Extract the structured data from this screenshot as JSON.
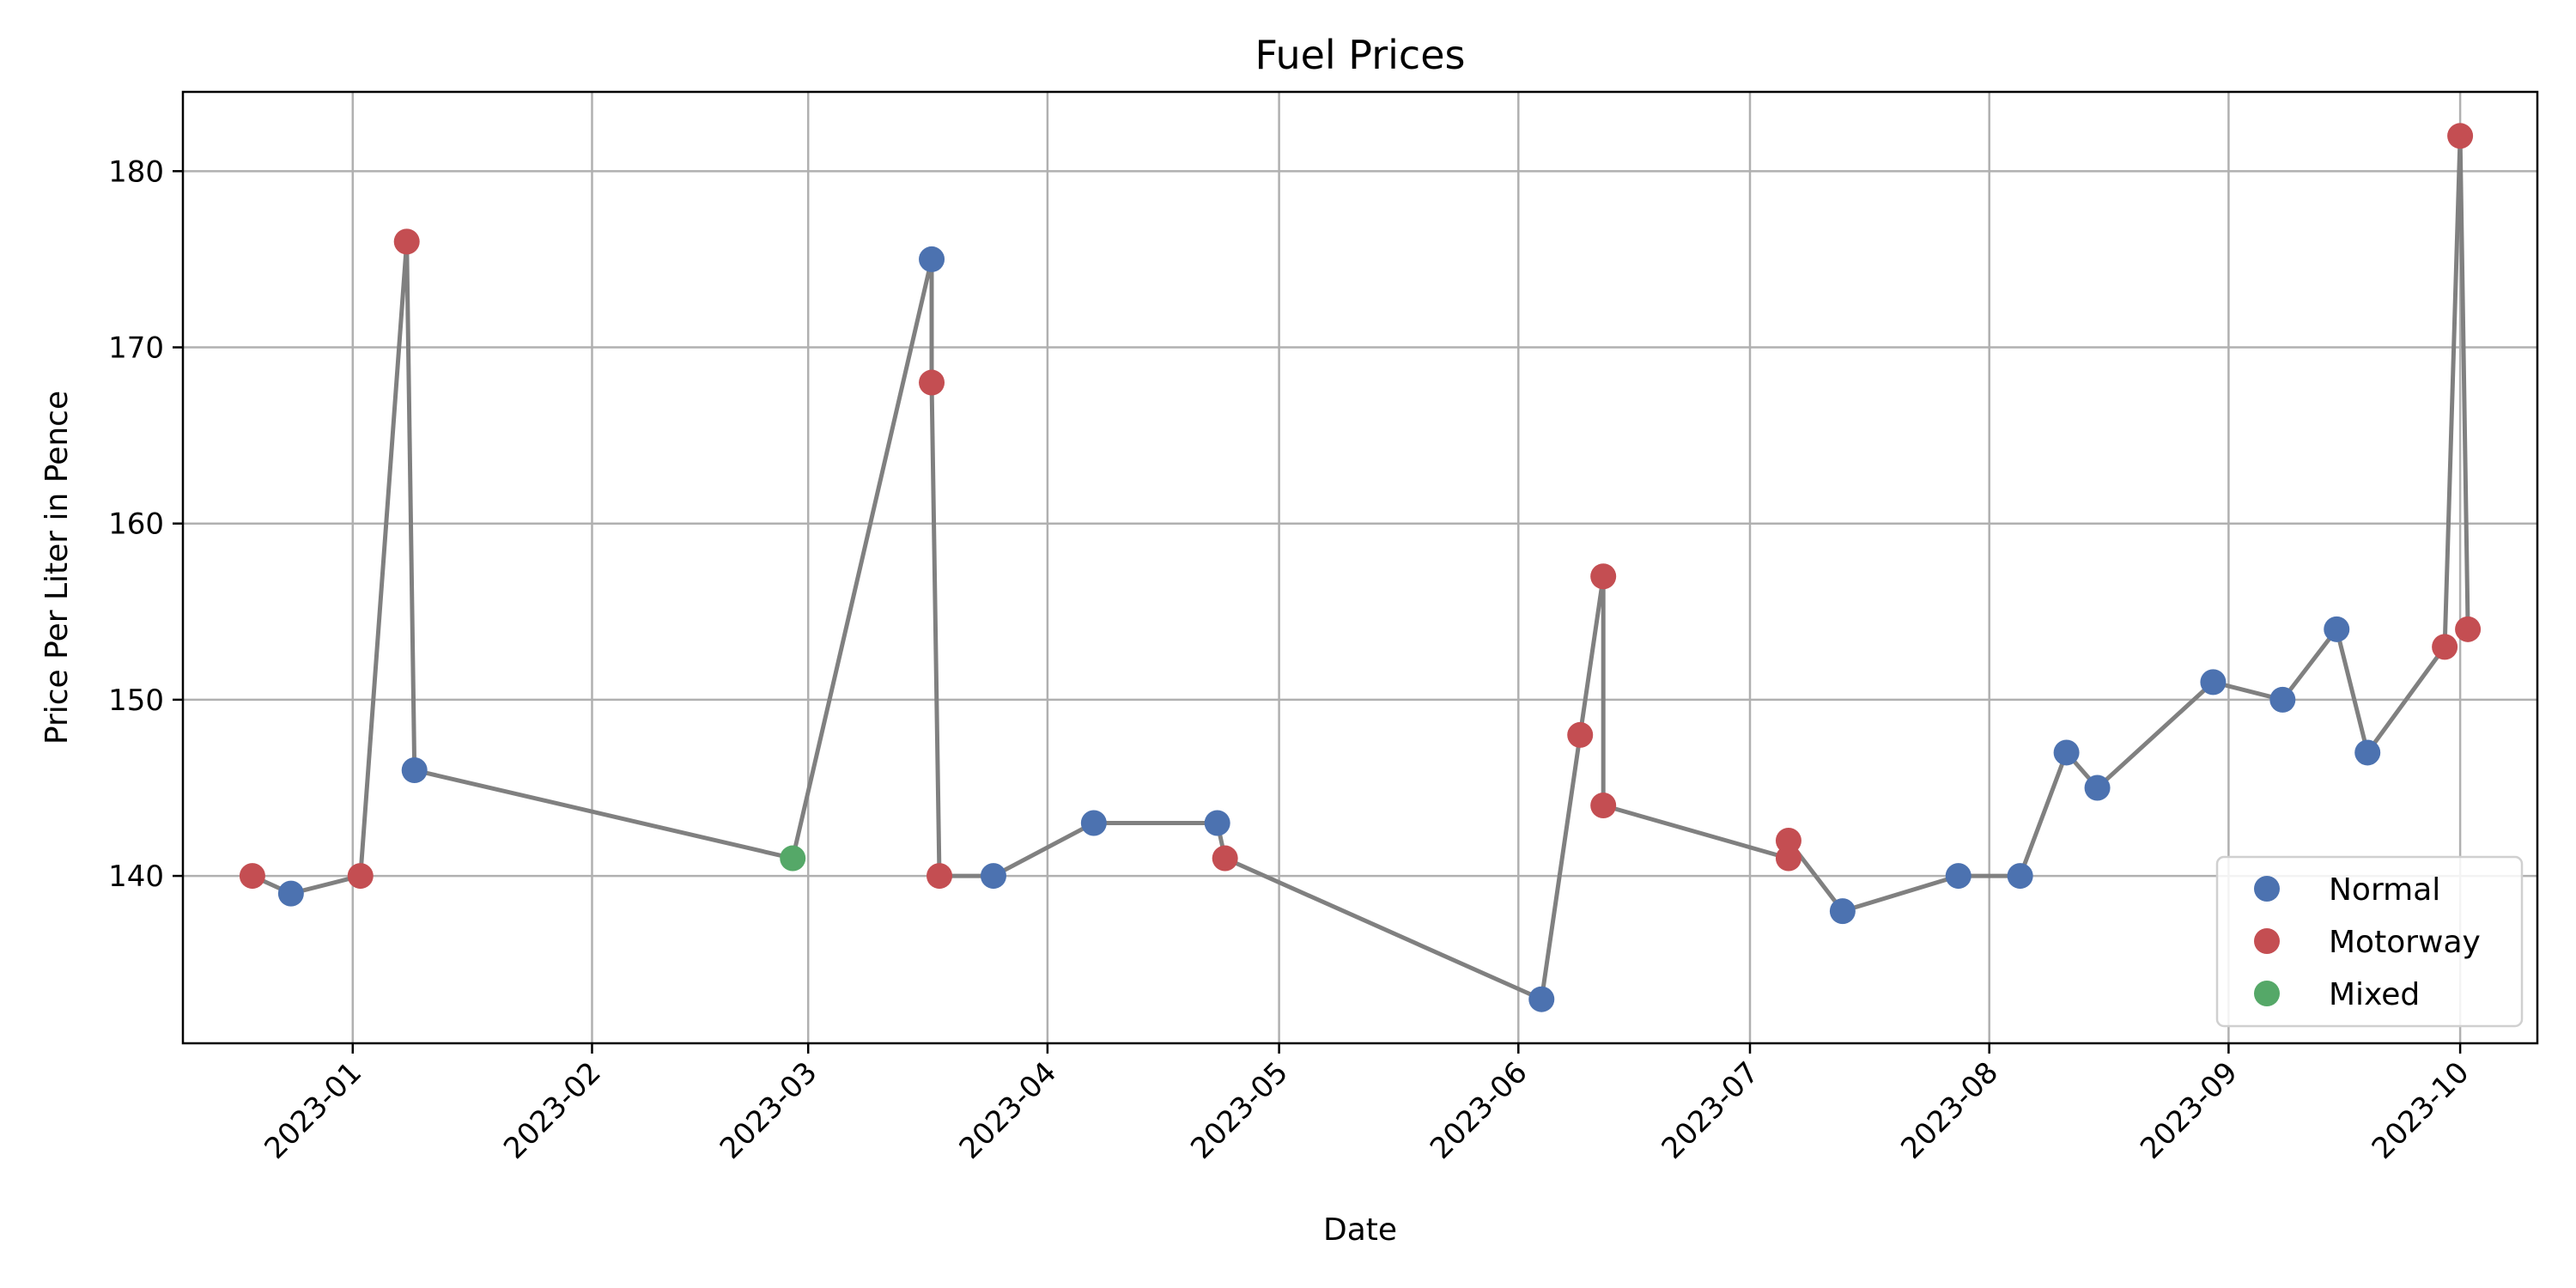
{
  "chart_data": {
    "type": "scatter",
    "title": "Fuel Prices",
    "xlabel": "Date",
    "ylabel": "Price Per Liter in Pence",
    "xlim": [
      "2022-12-10",
      "2023-10-11"
    ],
    "ylim": [
      130.5,
      184.5
    ],
    "x_ticks": [
      "2023-01",
      "2023-02",
      "2023-03",
      "2023-04",
      "2023-05",
      "2023-06",
      "2023-07",
      "2023-08",
      "2023-09",
      "2023-10"
    ],
    "x_tick_dates": [
      "2023-01-01",
      "2023-02-01",
      "2023-03-01",
      "2023-04-01",
      "2023-05-01",
      "2023-06-01",
      "2023-07-01",
      "2023-08-01",
      "2023-09-01",
      "2023-10-01"
    ],
    "y_ticks": [
      140,
      150,
      160,
      170,
      180
    ],
    "grid": true,
    "legend_position": "lower-right",
    "connecting_line": true,
    "colors": {
      "Normal": "#4c72b0",
      "Motorway": "#c44e52",
      "Mixed": "#55a868",
      "line": "#808080",
      "grid": "#b0b0b0"
    },
    "series": [
      {
        "name": "Normal"
      },
      {
        "name": "Motorway"
      },
      {
        "name": "Mixed"
      }
    ],
    "points": [
      {
        "date": "2022-12-19",
        "value": 140,
        "category": "Motorway"
      },
      {
        "date": "2022-12-24",
        "value": 139,
        "category": "Normal"
      },
      {
        "date": "2023-01-02",
        "value": 140,
        "category": "Motorway"
      },
      {
        "date": "2023-01-08",
        "value": 176,
        "category": "Motorway"
      },
      {
        "date": "2023-01-09",
        "value": 146,
        "category": "Normal"
      },
      {
        "date": "2023-02-27",
        "value": 141,
        "category": "Mixed"
      },
      {
        "date": "2023-03-17",
        "value": 175,
        "category": "Normal"
      },
      {
        "date": "2023-03-17",
        "value": 168,
        "category": "Motorway"
      },
      {
        "date": "2023-03-18",
        "value": 140,
        "category": "Motorway"
      },
      {
        "date": "2023-03-25",
        "value": 140,
        "category": "Normal"
      },
      {
        "date": "2023-04-07",
        "value": 143,
        "category": "Normal"
      },
      {
        "date": "2023-04-23",
        "value": 143,
        "category": "Normal"
      },
      {
        "date": "2023-04-24",
        "value": 141,
        "category": "Motorway"
      },
      {
        "date": "2023-06-04",
        "value": 133,
        "category": "Normal"
      },
      {
        "date": "2023-06-09",
        "value": 148,
        "category": "Motorway"
      },
      {
        "date": "2023-06-12",
        "value": 157,
        "category": "Motorway"
      },
      {
        "date": "2023-06-12",
        "value": 144,
        "category": "Motorway"
      },
      {
        "date": "2023-07-06",
        "value": 141,
        "category": "Motorway"
      },
      {
        "date": "2023-07-06",
        "value": 142,
        "category": "Motorway"
      },
      {
        "date": "2023-07-13",
        "value": 138,
        "category": "Normal"
      },
      {
        "date": "2023-07-28",
        "value": 140,
        "category": "Normal"
      },
      {
        "date": "2023-08-05",
        "value": 140,
        "category": "Normal"
      },
      {
        "date": "2023-08-11",
        "value": 147,
        "category": "Normal"
      },
      {
        "date": "2023-08-15",
        "value": 145,
        "category": "Normal"
      },
      {
        "date": "2023-08-30",
        "value": 151,
        "category": "Normal"
      },
      {
        "date": "2023-09-08",
        "value": 150,
        "category": "Normal"
      },
      {
        "date": "2023-09-15",
        "value": 154,
        "category": "Normal"
      },
      {
        "date": "2023-09-19",
        "value": 147,
        "category": "Normal"
      },
      {
        "date": "2023-09-29",
        "value": 153,
        "category": "Motorway"
      },
      {
        "date": "2023-10-01",
        "value": 182,
        "category": "Motorway"
      },
      {
        "date": "2023-10-02",
        "value": 154,
        "category": "Motorway"
      }
    ]
  }
}
